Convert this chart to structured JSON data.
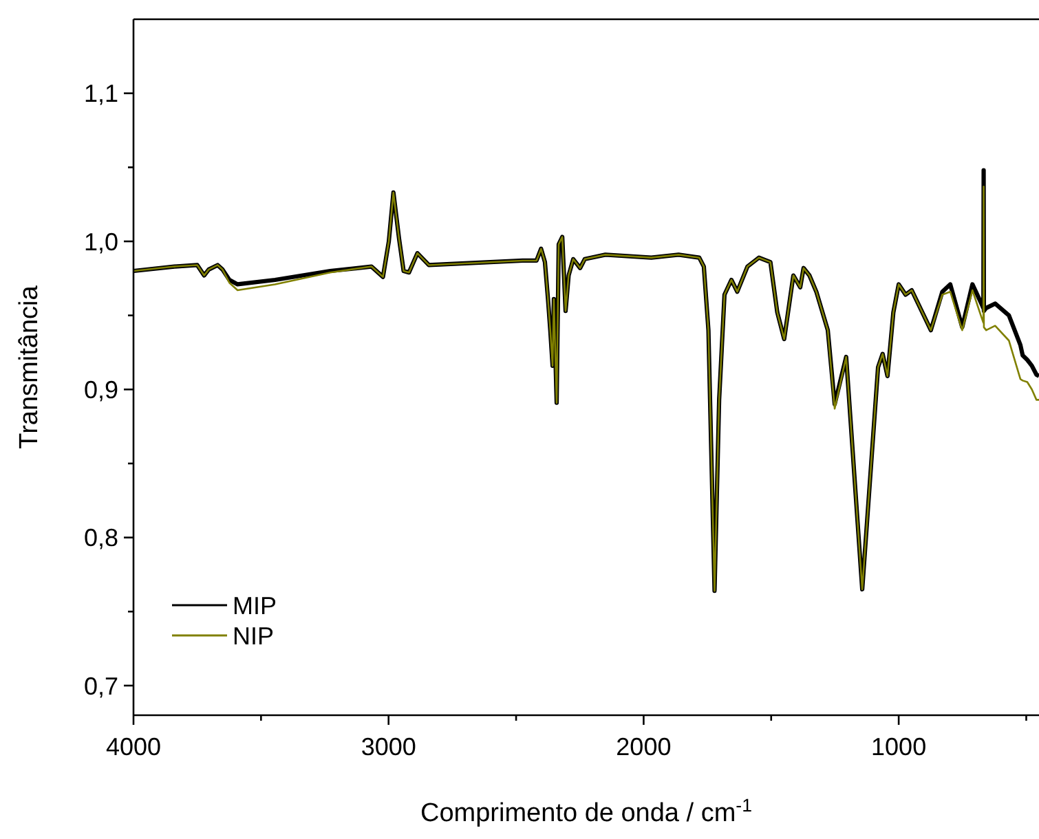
{
  "chart_data": {
    "type": "line",
    "xlabel": "Comprimento de onda / cm$^{-1}$",
    "ylabel": "Transmitância",
    "x": [
      4000,
      3840,
      3750,
      3723,
      3705,
      3670,
      3651,
      3624,
      3592,
      3445,
      3229,
      3067,
      3022,
      2999,
      2981,
      2959,
      2941,
      2920,
      2887,
      2842,
      2474,
      2420,
      2402,
      2387,
      2375,
      2366,
      2357,
      2352,
      2341,
      2333,
      2319,
      2306,
      2294,
      2276,
      2249,
      2231,
      2150,
      1970,
      1863,
      1782,
      1764,
      1746,
      1722,
      1704,
      1683,
      1656,
      1633,
      1593,
      1548,
      1503,
      1476,
      1449,
      1413,
      1386,
      1373,
      1350,
      1323,
      1278,
      1251,
      1206,
      1143,
      1081,
      1063,
      1044,
      1021,
      1000,
      973,
      949,
      874,
      829,
      798,
      751,
      711,
      676,
      668,
      667,
      666,
      657,
      622,
      568,
      523,
      514,
      496,
      478,
      460,
      450
    ],
    "series": [
      {
        "name": "MIP",
        "color": "#000000",
        "values": [
          0.98,
          0.983,
          0.984,
          0.977,
          0.981,
          0.984,
          0.981,
          0.974,
          0.971,
          0.974,
          0.98,
          0.983,
          0.976,
          1.0,
          1.033,
          1.002,
          0.98,
          0.979,
          0.992,
          0.984,
          0.987,
          0.987,
          0.995,
          0.986,
          0.961,
          0.94,
          0.916,
          0.961,
          0.891,
          0.998,
          1.003,
          0.953,
          0.977,
          0.988,
          0.982,
          0.988,
          0.991,
          0.989,
          0.991,
          0.989,
          0.983,
          0.94,
          0.764,
          0.893,
          0.964,
          0.974,
          0.966,
          0.983,
          0.989,
          0.986,
          0.952,
          0.934,
          0.977,
          0.969,
          0.982,
          0.977,
          0.966,
          0.94,
          0.89,
          0.922,
          0.765,
          0.915,
          0.924,
          0.909,
          0.952,
          0.971,
          0.964,
          0.967,
          0.94,
          0.966,
          0.971,
          0.942,
          0.971,
          0.958,
          0.955,
          1.048,
          0.953,
          0.955,
          0.958,
          0.95,
          0.93,
          0.923,
          0.92,
          0.916,
          0.91,
          0.909
        ]
      },
      {
        "name": "NIP",
        "color": "#808000",
        "values": [
          0.98,
          0.983,
          0.984,
          0.977,
          0.981,
          0.984,
          0.981,
          0.972,
          0.967,
          0.971,
          0.979,
          0.983,
          0.976,
          1.0,
          1.033,
          1.002,
          0.98,
          0.979,
          0.992,
          0.984,
          0.987,
          0.987,
          0.995,
          0.986,
          0.961,
          0.94,
          0.916,
          0.961,
          0.891,
          0.998,
          1.003,
          0.953,
          0.977,
          0.988,
          0.982,
          0.988,
          0.991,
          0.989,
          0.991,
          0.989,
          0.983,
          0.94,
          0.764,
          0.893,
          0.964,
          0.974,
          0.966,
          0.983,
          0.989,
          0.986,
          0.952,
          0.934,
          0.977,
          0.969,
          0.982,
          0.977,
          0.966,
          0.94,
          0.887,
          0.922,
          0.765,
          0.915,
          0.924,
          0.909,
          0.952,
          0.971,
          0.964,
          0.967,
          0.94,
          0.964,
          0.966,
          0.94,
          0.967,
          0.949,
          0.945,
          1.037,
          0.942,
          0.94,
          0.943,
          0.933,
          0.907,
          0.906,
          0.905,
          0.9,
          0.893,
          0.893
        ]
      }
    ],
    "xlim": [
      4000,
      450
    ],
    "ylim": [
      0.68,
      1.15
    ],
    "xticks": [
      4000,
      {
        "value": 3500,
        "label": null
      },
      3000,
      {
        "value": 2500,
        "label": null
      },
      2000,
      {
        "value": 1500,
        "label": null
      },
      1000,
      {
        "value": 500,
        "label": null
      }
    ],
    "yticks": [
      {
        "value": 0.7,
        "label": "0,7"
      },
      {
        "value": 0.75,
        "label": null
      },
      {
        "value": 0.8,
        "label": "0,8"
      },
      {
        "value": 0.85,
        "label": null
      },
      {
        "value": 0.9,
        "label": "0,9"
      },
      {
        "value": 0.95,
        "label": null
      },
      {
        "value": 1.0,
        "label": "1,0"
      },
      {
        "value": 1.05,
        "label": null
      },
      {
        "value": 1.1,
        "label": "1,1"
      }
    ],
    "legend": "bottom left",
    "grid": false,
    "line_style": "solid",
    "marker": "none"
  }
}
